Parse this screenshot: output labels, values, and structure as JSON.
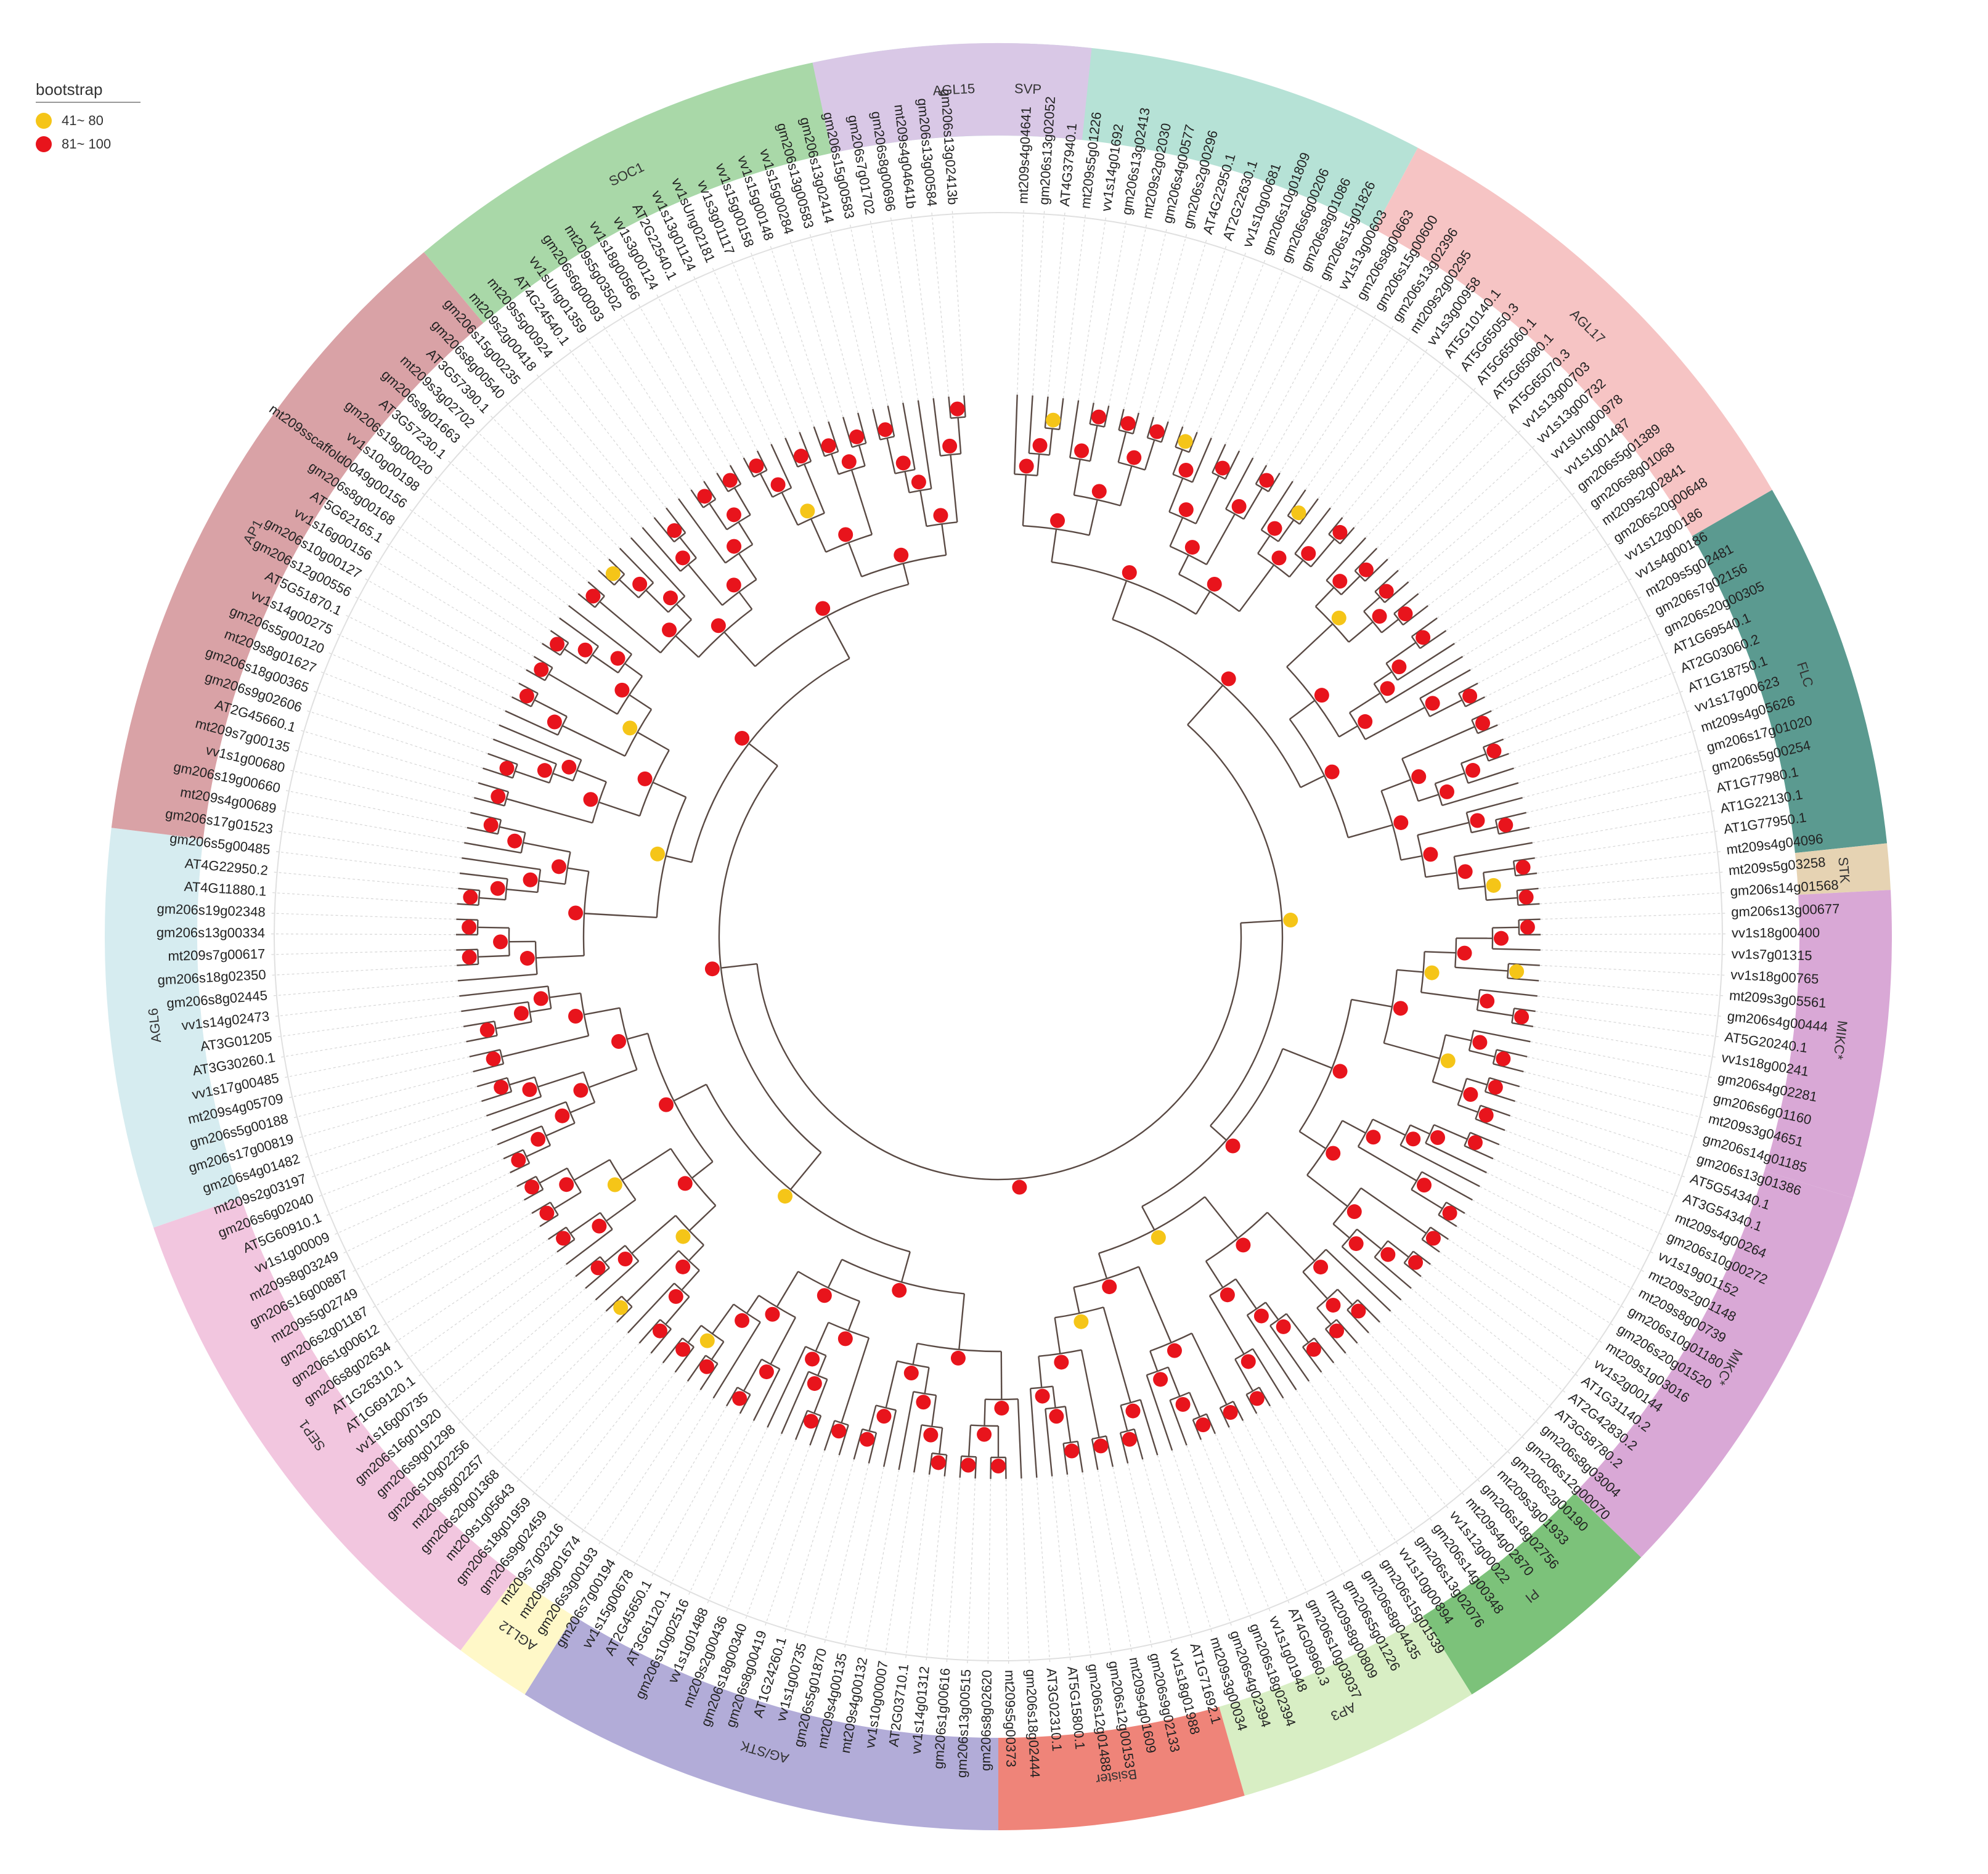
{
  "legend": {
    "title": "bootstrap",
    "items": [
      {
        "label": "41~ 80",
        "color": "#f5c518"
      },
      {
        "label": "81~ 100",
        "color": "#e8141c"
      }
    ]
  },
  "clades": [
    {
      "name": "SVP",
      "color": "#b6e2d6"
    },
    {
      "name": "AGL17",
      "color": "#f6c4c4"
    },
    {
      "name": "FLC",
      "color": "#5b9a90"
    },
    {
      "name": "STK",
      "color": "#e6d3b3"
    },
    {
      "name": "MIKC*",
      "color": "#d9a8d6"
    },
    {
      "name": "MIKC*",
      "color": "#d9a8d6"
    },
    {
      "name": "PI",
      "color": "#7cc27a"
    },
    {
      "name": "AP3",
      "color": "#d8eec4"
    },
    {
      "name": "Bsister",
      "color": "#ef8479"
    },
    {
      "name": "AG/STK",
      "color": "#b2acd8"
    },
    {
      "name": "AGL12",
      "color": "#fff8c8"
    },
    {
      "name": "SEP1",
      "color": "#f2c6df"
    },
    {
      "name": "AGL6",
      "color": "#d6ecf0"
    },
    {
      "name": "AP1",
      "color": "#d9a2a6"
    },
    {
      "name": "SOC1",
      "color": "#a9d8a8"
    },
    {
      "name": "AGL15",
      "color": "#d9c8e6"
    }
  ],
  "leaves": [
    "mt209s4g04641",
    "gm206s13g02052",
    "AT4G37940.1",
    "mt209s5g01226",
    "vv1s14g01692",
    "gm206s13g02413",
    "mt209s2g02030",
    "gm206s4g00577",
    "gm206s2g00296",
    "AT4G22950.1",
    "AT2G22630.1",
    "vv1s10g00681",
    "gm206s10g01809",
    "gm206s6g00206",
    "gm206s8g01086",
    "gm206s15g01826",
    "vv1s13g00603",
    "gm206s8g00663",
    "gm206s15g00600",
    "gm206s13g02396",
    "mt209s2g00295",
    "vv1s3g00958",
    "AT5G10140.1",
    "AT5G65050.3",
    "AT5G65060.1",
    "AT5G65080.1",
    "AT5G65070.3",
    "vv1s13g00703",
    "vv1s13g00732",
    "vv1sUng00978",
    "vv1s1g01487",
    "gm206s5g01389",
    "gm206s8g01068",
    "mt209s2g02841",
    "gm206s20g00648",
    "vv1s12g00186",
    "vv1s4g00186",
    "mt209s5g02481",
    "gm206s7g02156",
    "gm206s20g00305",
    "AT1G69540.1",
    "AT2G03060.2",
    "AT1G18750.1",
    "vv1s17g00623",
    "mt209s4g05626",
    "gm206s17g01020",
    "gm206s5g00254",
    "AT1G77980.1",
    "AT1G22130.1",
    "AT1G77950.1",
    "mt209s4g04096",
    "mt209s5g03258",
    "gm206s14g01568",
    "gm206s13g00677",
    "vv1s18g00400",
    "vv1s7g01315",
    "vv1s18g00765",
    "mt209s3g05561",
    "gm206s4g00444",
    "AT5G20240.1",
    "vv1s18g00241",
    "gm206s4g02281",
    "gm206s6g01160",
    "mt209s3g04651",
    "gm206s14g01185",
    "gm206s13g01386",
    "AT5G54340.1",
    "AT3G54340.1",
    "mt209s4g00264",
    "gm206s10g00272",
    "vv1s19g01152",
    "mt209s2g01148",
    "mt209s8g00739",
    "gm206s10g01180",
    "gm206s20g01520",
    "mt209s1g03016",
    "vv1s2g00144",
    "AT1G31140.2",
    "AT2G42830.2",
    "AT3G58780.2",
    "gm206s8g03004",
    "gm206s12g00070",
    "gm206s2g00190",
    "mt209s3g01933",
    "gm206s18g02756",
    "mt209s4g02870",
    "vv1s12g00022",
    "gm206s14g00348",
    "gm206s13g02076",
    "vv1s10g00894",
    "gm206s15g01539",
    "gm206s8g04435",
    "gm206s5g01226",
    "mt209s8g00809",
    "gm206s10g03037",
    "AT4G09960.3",
    "vv1s1g01948",
    "gm206s18g02394",
    "gm206s4g02394",
    "mt209s3g00034",
    "AT1G71692.1",
    "vv1s18g01988",
    "gm206s9g02133",
    "mt209s4g01609",
    "gm206s12g00153",
    "gm206s12g01488",
    "AT5G15800.1",
    "AT3G02310.1",
    "gm206s18g02444",
    "mt209s5g00373",
    "gm206s8g02620",
    "gm206s13g00515",
    "gm206s1g00616",
    "vv1s14g01312",
    "AT2G03710.1",
    "vv1s10g00007",
    "mt209s4g00132",
    "mt209s4g00135",
    "gm206s5g01870",
    "vv1s1g00735",
    "AT1G24260.1",
    "gm206s8g00419",
    "gm206s18g00340",
    "mt209s2g00436",
    "vv1s1g01488",
    "gm206s10g02516",
    "AT3G61120.1",
    "AT2G45650.1",
    "vv1s15g00678",
    "gm206s7g00194",
    "gm206s3g00193",
    "mt209s8g01674",
    "mt209s7g03216",
    "gm206s9g02459",
    "gm206s18g01959",
    "mt209s1g05643",
    "gm206s20g01368",
    "mt209s6g02257",
    "gm206s10g02256",
    "gm206s9g01298",
    "gm206s16g01920",
    "vv1s16g00735",
    "AT1G69120.1",
    "AT1G26310.1",
    "gm206s8g02634",
    "gm206s1g00612",
    "gm206s2g01187",
    "mt209s5g02749",
    "gm206s16g00887",
    "mt209s8g03249",
    "vv1s1g00009",
    "AT5G60910.1",
    "gm206s6g02040",
    "mt209s2g03197",
    "gm206s4g01482",
    "gm206s17g00819",
    "gm206s5g00188",
    "mt209s4g05709",
    "vv1s17g00485",
    "AT3G30260.1",
    "AT3G01205",
    "vv1s14g02473",
    "gm206s8g02445",
    "gm206s18g02350",
    "mt209s7g00617",
    "gm206s13g00334",
    "gm206s19g02348",
    "AT4G11880.1",
    "AT4G22950.2",
    "gm206s5g00485",
    "gm206s17g01523",
    "mt209s4g00689",
    "gm206s19g00660",
    "vv1s1g00680",
    "mt209s7g00135",
    "AT2G45660.1",
    "gm206s9g02606",
    "gm206s18g00365",
    "mt209s8g01627",
    "gm206s5g00120",
    "vv1s14g00275",
    "AT5G51870.1",
    "gm206s12g00556",
    "gm206s10g00127",
    "vv1s16g00156",
    "AT5G62165.1",
    "gm206s8g00168",
    "mt209sscaffold0049g00156",
    "vv1s10g00198",
    "gm206s19g00020",
    "AT3G57230.1",
    "gm206s9g01663",
    "mt209s3g02702",
    "AT3G57390.1",
    "gm206s8g00540",
    "gm206s15g00235",
    "mt209s2g00418",
    "mt209s5g00924",
    "AT4G24540.1",
    "vv1sUng01359",
    "gm206s6g00093",
    "mt209s5g03502",
    "vv1s18g00566",
    "vv1s3g00124",
    "AT2G22540.1",
    "vv1s13g01124",
    "vv1sUng02181",
    "vv1s3g01117",
    "vv1s15g00158",
    "vv1s15g00148",
    "vv1s15g00284",
    "gm206s13g00583",
    "gm206s13g02414",
    "gm206s15g00583",
    "gm206s7g01702",
    "gm206s8g00696",
    "mt209s4g04641b",
    "gm206s13g00584",
    "gm206s13g02413b"
  ],
  "bootstrap_nodes": [
    {
      "r": 0.07,
      "a": 0.0,
      "v": 95
    },
    {
      "r": 0.11,
      "a": 8,
      "v": 92
    },
    {
      "r": 0.15,
      "a": -12,
      "v": 88
    },
    {
      "r": 0.18,
      "a": 6,
      "v": 60
    },
    {
      "r": 0.22,
      "a": -4,
      "v": 70
    },
    {
      "r": 0.25,
      "a": 16,
      "v": 98
    },
    {
      "r": 0.3,
      "a": -22,
      "v": 65
    },
    {
      "r": 0.34,
      "a": 30,
      "v": 99
    },
    {
      "r": 0.38,
      "a": -40,
      "v": 55
    }
  ]
}
